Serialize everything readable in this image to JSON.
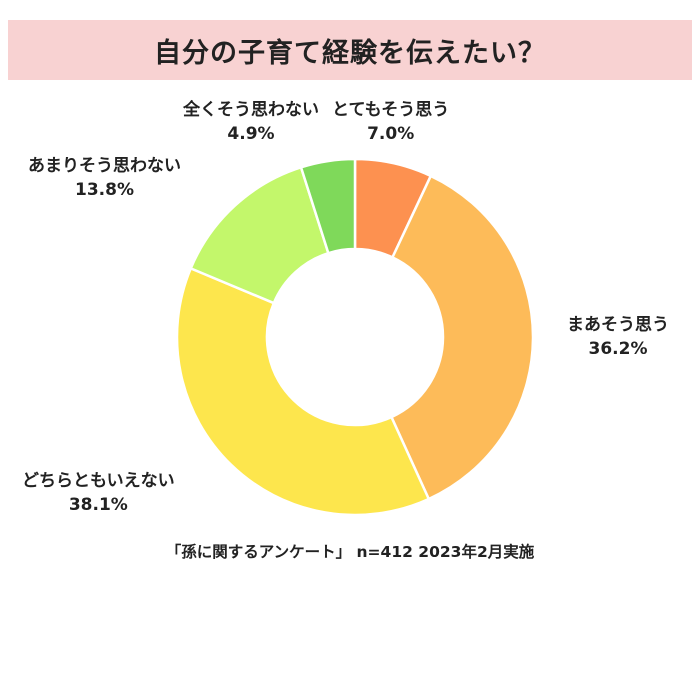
{
  "title": "自分の子育て経験を伝えたい？",
  "footnote": "「孫に関するアンケート」 n=412 2023年2月実施",
  "chart_data": {
    "type": "pie",
    "donut": true,
    "categories": [
      "とてもそう思う",
      "まあそう思う",
      "どちらともいえない",
      "あまりそう思わない",
      "全くそう思わない"
    ],
    "values": [
      7.0,
      36.2,
      38.1,
      13.8,
      4.9
    ],
    "value_labels": [
      "7.0%",
      "36.2%",
      "38.1%",
      "13.8%",
      "4.9%"
    ],
    "colors": [
      "#fd9150",
      "#fdbb59",
      "#fde64d",
      "#c3f76b",
      "#7fd95a"
    ],
    "start": "12 o'clock",
    "direction": "clockwise"
  }
}
